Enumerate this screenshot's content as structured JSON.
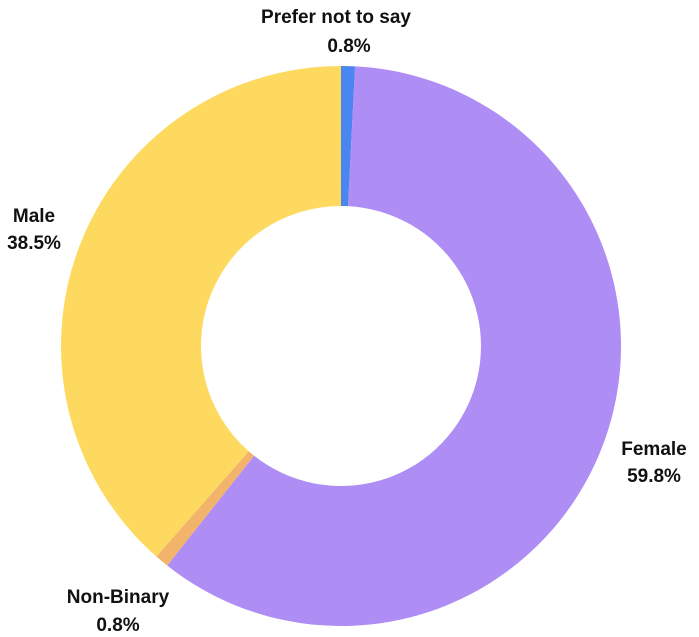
{
  "chart_data": {
    "type": "pie",
    "variant": "donut",
    "title": "",
    "slices": [
      {
        "name": "Prefer not to say",
        "value": 0.8,
        "value_label": "0.8%",
        "color": "#4A86F0"
      },
      {
        "name": "Female",
        "value": 59.8,
        "value_label": "59.8%",
        "color": "#AE8DF4"
      },
      {
        "name": "Non-Binary",
        "value": 0.8,
        "value_label": "0.8%",
        "color": "#F2B36B"
      },
      {
        "name": "Male",
        "value": 38.5,
        "value_label": "38.5%",
        "color": "#FDDA5F"
      }
    ],
    "start": "top",
    "direction": "clockwise",
    "legend": "none"
  }
}
